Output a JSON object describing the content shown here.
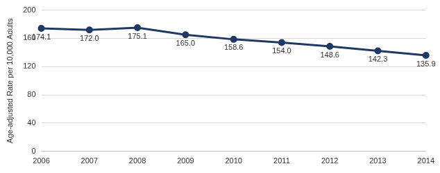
{
  "chart_data": {
    "type": "line",
    "y_label": "Age-adjusted Rate per 10,000 Adults",
    "categories": [
      "2006",
      "2007",
      "2008",
      "2009",
      "2010",
      "2011",
      "2012",
      "2013",
      "2014"
    ],
    "values": [
      174.1,
      172.0,
      175.1,
      165.0,
      158.6,
      154.0,
      148.6,
      142.3,
      135.9
    ],
    "value_labels": [
      "174.1",
      "172.0",
      "175.1",
      "165.0",
      "158.6",
      "154.0",
      "148.6",
      "142.3",
      "135.9"
    ],
    "color": "#1f3864",
    "marker": "circle",
    "ylim": [
      0,
      200
    ],
    "yticks": [
      0,
      40,
      80,
      120,
      160,
      200
    ],
    "grid": true,
    "data_labels": true
  }
}
